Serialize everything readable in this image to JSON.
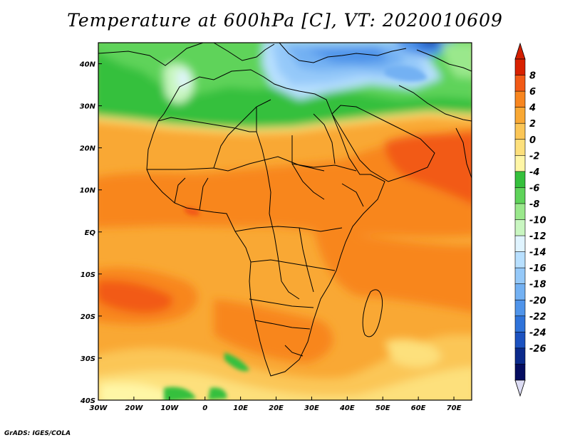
{
  "title": "Temperature at 600hPa [C], VT: 2020010609",
  "footer": "GrADS: IGES/COLA",
  "map": {
    "region": "Africa",
    "variable": "Temperature at 600hPa",
    "units": "C",
    "valid_time": "2020010609",
    "lon_range": [
      -30,
      75
    ],
    "lat_range": [
      -40,
      45
    ],
    "lat_labels": [
      "40N",
      "30N",
      "20N",
      "10N",
      "EQ",
      "10S",
      "20S",
      "30S",
      "40S"
    ],
    "lat_values": [
      40,
      30,
      20,
      10,
      0,
      -10,
      -20,
      -30,
      -40
    ],
    "lon_labels": [
      "30W",
      "20W",
      "10W",
      "0",
      "10E",
      "20E",
      "30E",
      "40E",
      "50E",
      "60E",
      "70E"
    ],
    "lon_values": [
      -30,
      -20,
      -10,
      0,
      10,
      20,
      30,
      40,
      50,
      60,
      70
    ]
  },
  "colorbar": {
    "labels": [
      "8",
      "6",
      "4",
      "2",
      "0",
      "-2",
      "-4",
      "-6",
      "-8",
      "-10",
      "-12",
      "-14",
      "-16",
      "-18",
      "-20",
      "-22",
      "-24",
      "-26"
    ],
    "colors": [
      "#d82100",
      "#f25a16",
      "#f8861f",
      "#f9a834",
      "#fbc657",
      "#fde07c",
      "#fff6a6",
      "#35c03c",
      "#5fd35a",
      "#9ae88c",
      "#c9f6c1",
      "#e0f4ff",
      "#b8e0ff",
      "#95c9f9",
      "#73b1f3",
      "#4f94ea",
      "#2f73da",
      "#1c52c0",
      "#0b2a8c",
      "#050d60"
    ],
    "top_color": "#d31e00",
    "bottom_color": "#ddddf4"
  }
}
